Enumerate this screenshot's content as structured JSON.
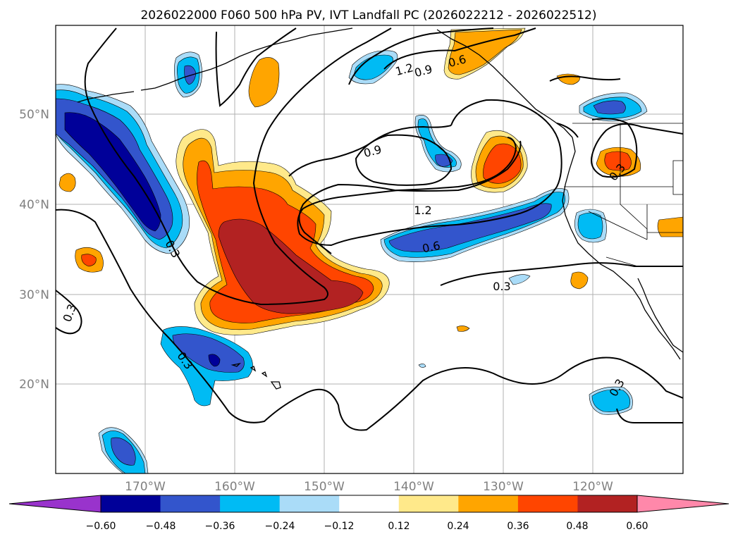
{
  "title": "2026022000 F060 500 hPa PV, IVT Landfall PC (2026022212 - 2026022512)",
  "map": {
    "lon_labels": [
      "170°W",
      "160°W",
      "150°W",
      "140°W",
      "130°W",
      "120°W"
    ],
    "lat_labels": [
      "50°N",
      "40°N",
      "30°N",
      "20°N"
    ],
    "gridlines": true
  },
  "contour_labels": [
    "1.2",
    "0.9",
    "0.6",
    "0.9",
    "1.2",
    "0.6",
    "0.3",
    "0.3",
    "0.3",
    "0.3",
    "0.3",
    "0.3"
  ],
  "colorbar": {
    "ticks": [
      "−0.60",
      "−0.48",
      "−0.36",
      "−0.24",
      "−0.12",
      "0.12",
      "0.24",
      "0.36",
      "0.48",
      "0.60"
    ],
    "colors": [
      "#9933cc",
      "#000099",
      "#3355cc",
      "#00bbf4",
      "#aadcf8",
      "#ffffff",
      "#ffe98a",
      "#ffa500",
      "#ff4500",
      "#b22222",
      "#ff88aa"
    ]
  }
}
